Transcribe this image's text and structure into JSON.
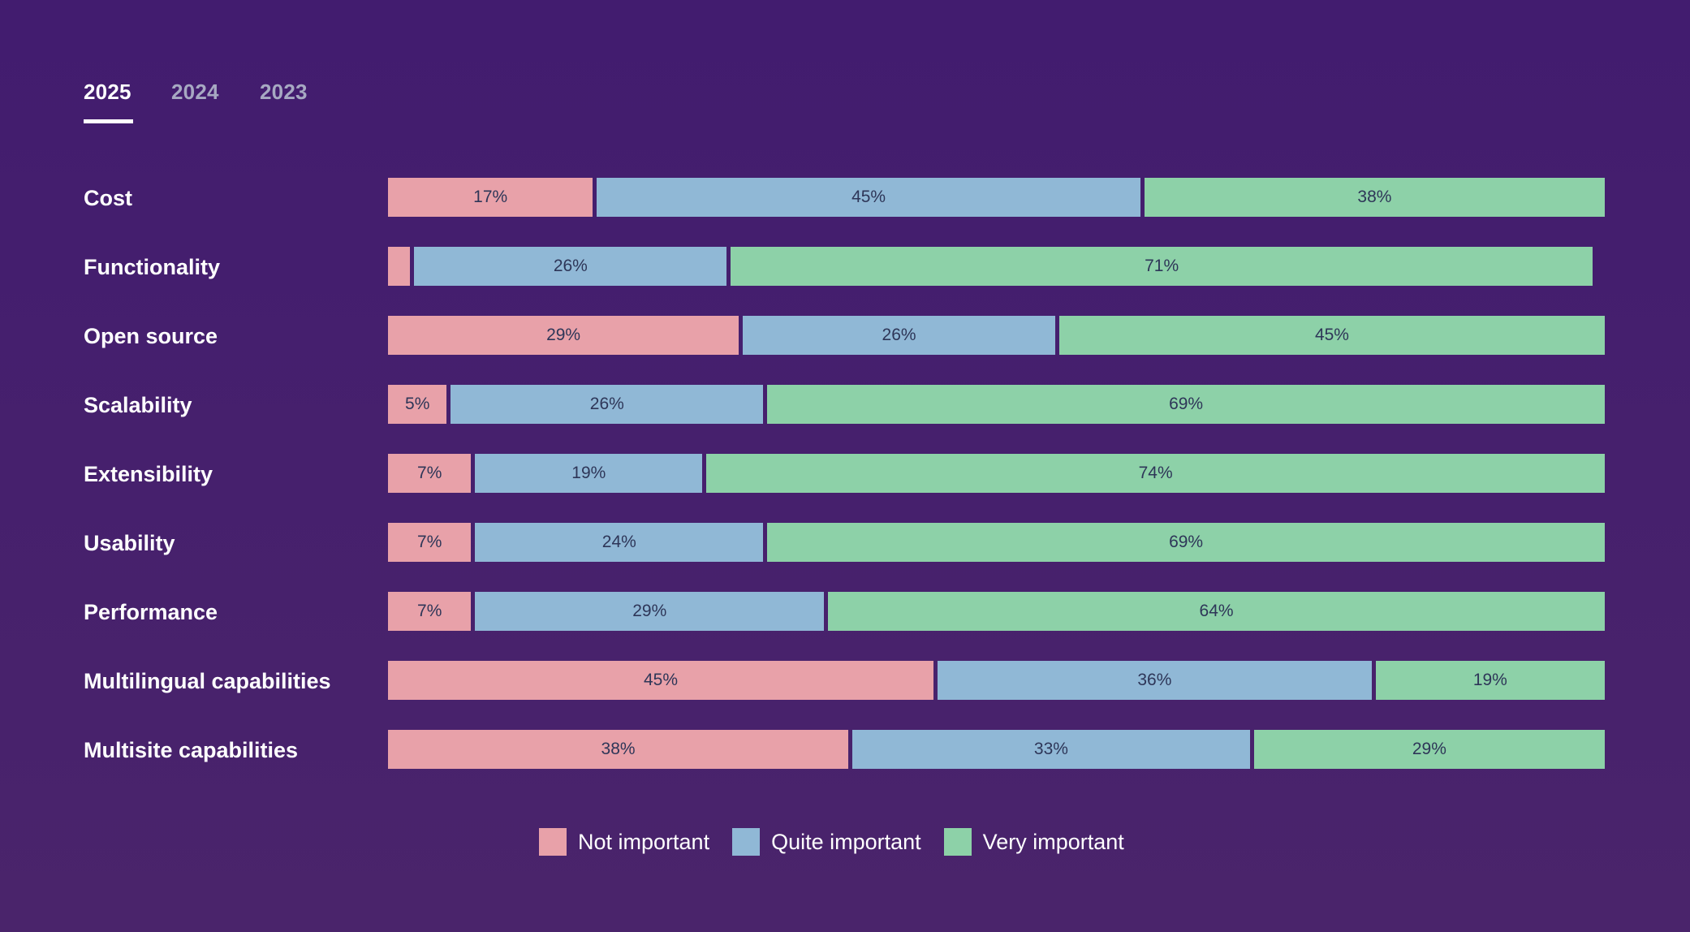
{
  "tabs": [
    {
      "label": "2025",
      "active": true
    },
    {
      "label": "2024",
      "active": false
    },
    {
      "label": "2023",
      "active": false
    }
  ],
  "colors": {
    "background": "#431d6e",
    "not_important": "#e8a1a9",
    "quite_important": "#90b8d6",
    "very_important": "#8dd1a8",
    "segment_text": "#2e3658",
    "label_text": "#ffffff",
    "inactive_tab": "#a7a9c2"
  },
  "chart_data": {
    "type": "bar",
    "orientation": "horizontal",
    "stacked": true,
    "title": "",
    "xlabel": "",
    "ylabel": "",
    "xlim": [
      0,
      100
    ],
    "unit": "%",
    "grid": false,
    "legend_position": "bottom-center",
    "categories": [
      "Cost",
      "Functionality",
      "Open source",
      "Scalability",
      "Extensibility",
      "Usability",
      "Performance",
      "Multilingual capabilities",
      "Multisite capabilities"
    ],
    "series": [
      {
        "name": "Not important",
        "color_key": "not_important",
        "values": [
          17,
          2,
          29,
          5,
          7,
          7,
          7,
          45,
          38
        ],
        "labels": [
          "17%",
          "",
          "29%",
          "5%",
          "7%",
          "7%",
          "7%",
          "45%",
          "38%"
        ]
      },
      {
        "name": "Quite important",
        "color_key": "quite_important",
        "values": [
          45,
          26,
          26,
          26,
          19,
          24,
          29,
          36,
          33
        ],
        "labels": [
          "45%",
          "26%",
          "26%",
          "26%",
          "19%",
          "24%",
          "29%",
          "36%",
          "33%"
        ]
      },
      {
        "name": "Very important",
        "color_key": "very_important",
        "values": [
          38,
          71,
          45,
          69,
          74,
          69,
          64,
          19,
          29
        ],
        "labels": [
          "38%",
          "71%",
          "45%",
          "69%",
          "74%",
          "69%",
          "64%",
          "19%",
          "29%"
        ]
      }
    ]
  }
}
